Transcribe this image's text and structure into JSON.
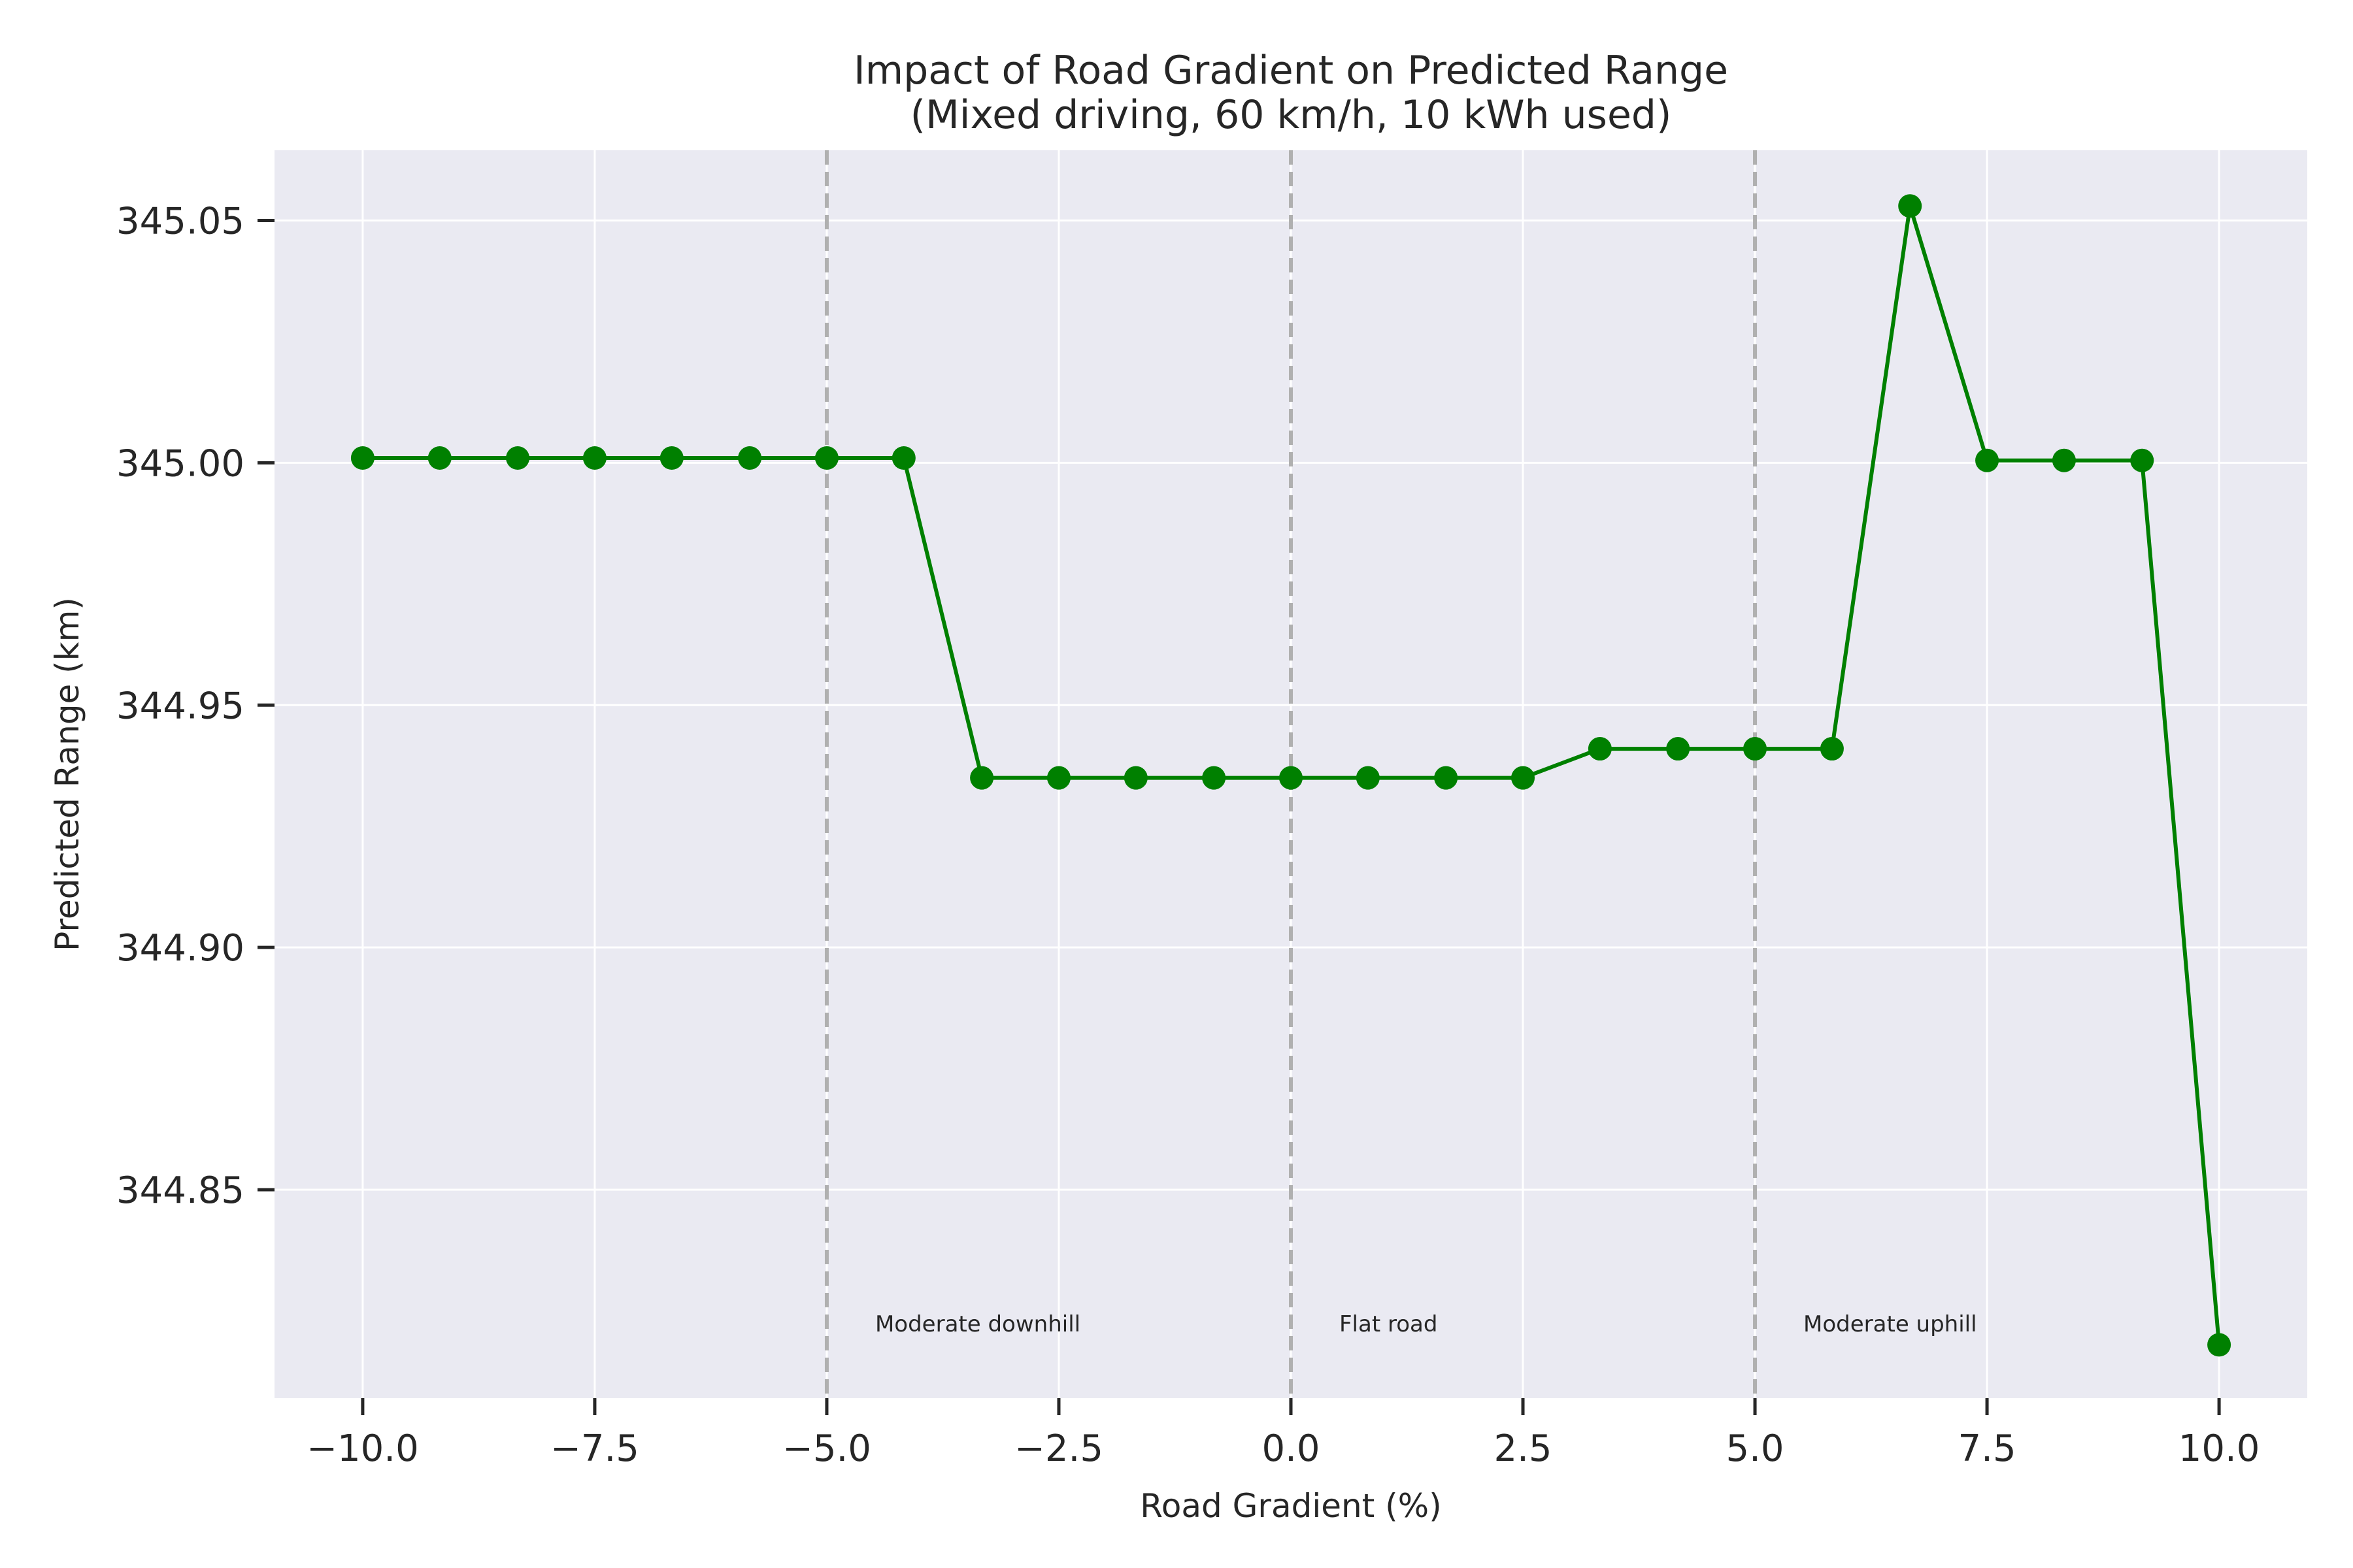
{
  "chart_data": {
    "type": "line",
    "title": "Impact of Road Gradient on Predicted Range",
    "subtitle": "(Mixed driving, 60 km/h, 10 kWh used)",
    "xlabel": "Road Gradient (%)",
    "ylabel": "Predicted Range (km)",
    "xlim": [
      -10.95,
      10.95
    ],
    "ylim": [
      344.807,
      345.0645
    ],
    "x_ticks": [
      -10.0,
      -7.5,
      -5.0,
      -2.5,
      0.0,
      2.5,
      5.0,
      7.5,
      10.0
    ],
    "x_tick_labels": [
      "−10.0",
      "−7.5",
      "−5.0",
      "−2.5",
      "0.0",
      "2.5",
      "5.0",
      "7.5",
      "10.0"
    ],
    "y_ticks": [
      344.85,
      344.9,
      344.95,
      345.0,
      345.05
    ],
    "y_tick_labels": [
      "344.85",
      "344.90",
      "344.95",
      "345.00",
      "345.05"
    ],
    "grid": true,
    "background_color": "#eaeaf2",
    "series": [
      {
        "color": "#008000",
        "x": [
          -10.0,
          -9.17,
          -8.33,
          -7.5,
          -6.67,
          -5.83,
          -5.0,
          -4.17,
          -3.33,
          -2.5,
          -1.67,
          -0.83,
          0.0,
          0.83,
          1.67,
          2.5,
          3.33,
          4.17,
          5.0,
          5.83,
          6.67,
          7.5,
          8.33,
          9.17,
          10.0
        ],
        "y": [
          345.001,
          345.001,
          345.001,
          345.001,
          345.001,
          345.001,
          345.001,
          345.001,
          344.935,
          344.935,
          344.935,
          344.935,
          344.935,
          344.935,
          344.935,
          344.935,
          344.941,
          344.941,
          344.941,
          344.941,
          345.053,
          345.0005,
          345.0005,
          345.0005,
          344.818
        ]
      }
    ],
    "reference_lines": [
      {
        "x": -5.0,
        "label": "Moderate downhill",
        "color": "#b0b0b0"
      },
      {
        "x": 0.0,
        "label": "Flat road",
        "color": "#b0b0b0"
      },
      {
        "x": 5.0,
        "label": "Moderate uphill",
        "color": "#b0b0b0"
      }
    ]
  }
}
